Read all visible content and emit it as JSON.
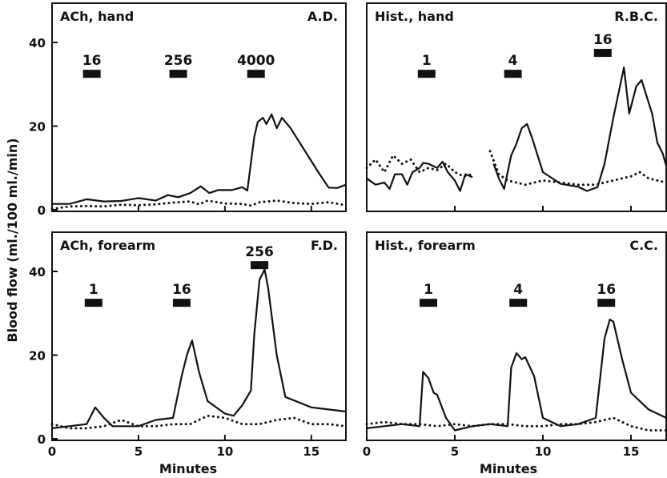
{
  "figure": {
    "ylabel": "Blood flow (ml./100 ml./min)",
    "xlabel": "Minutes"
  },
  "chart_data": [
    {
      "type": "line",
      "title": "ACh, hand",
      "subject": "A.D.",
      "xlim": [
        0,
        17
      ],
      "ylim": [
        0,
        45
      ],
      "yticks": [
        0,
        20,
        40
      ],
      "xticks": [
        0,
        5,
        10,
        15
      ],
      "doses": [
        {
          "label": "16",
          "x": 2.3,
          "y": 32.5
        },
        {
          "label": "256",
          "x": 7.3,
          "y": 32.5
        },
        {
          "label": "4000",
          "x": 11.8,
          "y": 32.5
        }
      ],
      "series": [
        {
          "style": "solid",
          "segments": [
            [
              [
                0,
                1.4
              ],
              [
                1,
                1.4
              ],
              [
                2,
                2.5
              ],
              [
                3,
                2
              ],
              [
                4,
                2.1
              ],
              [
                5,
                2.8
              ],
              [
                6,
                2.2
              ],
              [
                6.7,
                3.5
              ],
              [
                7.3,
                3
              ],
              [
                8,
                4
              ],
              [
                8.6,
                5.6
              ],
              [
                9.1,
                4
              ],
              [
                9.6,
                4.7
              ],
              [
                10.4,
                4.7
              ],
              [
                11,
                5.4
              ],
              [
                11.3,
                4.6
              ],
              [
                11.7,
                17.5
              ],
              [
                11.9,
                21
              ],
              [
                12.2,
                22
              ],
              [
                12.4,
                20.5
              ],
              [
                12.7,
                22.8
              ],
              [
                13,
                19.5
              ],
              [
                13.3,
                22
              ],
              [
                13.8,
                19.5
              ],
              [
                15.4,
                9
              ],
              [
                16,
                5.3
              ],
              [
                16.5,
                5.2
              ],
              [
                17,
                6
              ]
            ]
          ]
        },
        {
          "style": "dotted",
          "segments": [
            [
              [
                0,
                0.2
              ],
              [
                1,
                0.8
              ],
              [
                2,
                0.9
              ],
              [
                3,
                0.8
              ],
              [
                4,
                1.2
              ],
              [
                5,
                1.1
              ],
              [
                6,
                1.3
              ],
              [
                7,
                1.7
              ],
              [
                8,
                2
              ],
              [
                8.5,
                1.3
              ],
              [
                9,
                2.2
              ],
              [
                10,
                1.5
              ],
              [
                11,
                1.4
              ],
              [
                11.5,
                1
              ],
              [
                12,
                1.8
              ],
              [
                13,
                2.2
              ],
              [
                14,
                1.6
              ],
              [
                15,
                1.4
              ],
              [
                16,
                1.8
              ],
              [
                17,
                1.1
              ]
            ]
          ]
        }
      ]
    },
    {
      "type": "line",
      "title": "Hist., hand",
      "subject": "R.B.C.",
      "xlim": [
        0,
        17
      ],
      "ylim": [
        0,
        45
      ],
      "yticks": [],
      "xticks": [
        0,
        5,
        10,
        15
      ],
      "doses": [
        {
          "label": "1",
          "x": 3.4,
          "y": 32.5
        },
        {
          "label": "4",
          "x": 8.3,
          "y": 32.5
        },
        {
          "label": "16",
          "x": 13.4,
          "y": 37.5
        }
      ],
      "series": [
        {
          "style": "solid",
          "segments": [
            [
              [
                0,
                7.5
              ],
              [
                0.5,
                6
              ],
              [
                1,
                6.5
              ],
              [
                1.3,
                5
              ],
              [
                1.6,
                8.5
              ],
              [
                2,
                8.5
              ],
              [
                2.3,
                6
              ],
              [
                2.6,
                9
              ],
              [
                3,
                10
              ],
              [
                3.2,
                11.2
              ],
              [
                3.5,
                11
              ],
              [
                4,
                10
              ],
              [
                4.3,
                11.5
              ],
              [
                4.6,
                9
              ],
              [
                5,
                7
              ],
              [
                5.3,
                4.5
              ],
              [
                5.6,
                8.5
              ],
              [
                6,
                7.8
              ]
            ],
            [
              [
                7.2,
                11
              ],
              [
                7.5,
                7.5
              ],
              [
                7.8,
                5
              ],
              [
                8.2,
                13
              ],
              [
                8.5,
                15.8
              ],
              [
                8.8,
                19.5
              ],
              [
                9.1,
                20.5
              ],
              [
                9.4,
                17
              ],
              [
                10,
                9
              ],
              [
                11,
                6.2
              ],
              [
                12,
                5.5
              ],
              [
                12.5,
                4.5
              ],
              [
                13.1,
                5.4
              ],
              [
                13.5,
                11
              ],
              [
                14,
                22
              ],
              [
                14.3,
                28
              ],
              [
                14.6,
                34
              ],
              [
                14.9,
                23
              ],
              [
                15.3,
                29.5
              ],
              [
                15.6,
                31
              ],
              [
                15.9,
                27
              ],
              [
                16.2,
                23
              ],
              [
                16.5,
                16
              ],
              [
                16.8,
                13.5
              ],
              [
                17,
                10.5
              ]
            ]
          ]
        },
        {
          "style": "dotted",
          "segments": [
            [
              [
                0,
                10
              ],
              [
                0.5,
                12
              ],
              [
                1,
                9
              ],
              [
                1.5,
                13
              ],
              [
                2,
                11
              ],
              [
                2.5,
                12
              ],
              [
                3,
                9
              ],
              [
                3.5,
                10
              ],
              [
                4,
                9.5
              ],
              [
                4.5,
                11
              ],
              [
                5,
                9
              ],
              [
                5.5,
                8
              ],
              [
                6,
                8.5
              ]
            ],
            [
              [
                7,
                14
              ],
              [
                7.5,
                8.5
              ],
              [
                8,
                7
              ],
              [
                9,
                6
              ],
              [
                10,
                7
              ],
              [
                11,
                6.5
              ],
              [
                12,
                6
              ],
              [
                13,
                6
              ],
              [
                14,
                7
              ],
              [
                15,
                8
              ],
              [
                15.5,
                9
              ],
              [
                16,
                7.5
              ],
              [
                16.5,
                7
              ],
              [
                17,
                6.5
              ]
            ]
          ]
        }
      ]
    },
    {
      "type": "line",
      "title": "ACh, forearm",
      "subject": "F.D.",
      "xlim": [
        0,
        17
      ],
      "ylim": [
        0,
        45
      ],
      "yticks": [
        0,
        20,
        40
      ],
      "xticks": [
        0,
        5,
        10,
        15
      ],
      "doses": [
        {
          "label": "1",
          "x": 2.4,
          "y": 32.5
        },
        {
          "label": "16",
          "x": 7.5,
          "y": 32.5
        },
        {
          "label": "256",
          "x": 12,
          "y": 41.5
        }
      ],
      "series": [
        {
          "style": "solid",
          "segments": [
            [
              [
                0,
                2.5
              ],
              [
                1,
                3
              ],
              [
                2,
                3.5
              ],
              [
                2.5,
                7.5
              ],
              [
                3,
                5
              ],
              [
                3.5,
                3
              ],
              [
                4.5,
                3
              ],
              [
                5,
                3
              ],
              [
                6,
                4.5
              ],
              [
                7,
                5
              ],
              [
                7.5,
                15
              ],
              [
                7.8,
                20
              ],
              [
                8.1,
                23.5
              ],
              [
                8.5,
                16
              ],
              [
                9,
                9
              ],
              [
                10,
                6
              ],
              [
                10.5,
                5.5
              ],
              [
                11,
                8
              ],
              [
                11.5,
                11.5
              ],
              [
                11.7,
                25
              ],
              [
                12,
                38
              ],
              [
                12.3,
                40.5
              ],
              [
                12.5,
                36
              ],
              [
                13,
                20
              ],
              [
                13.5,
                10
              ],
              [
                15,
                7.5
              ],
              [
                16,
                7
              ],
              [
                17,
                6.5
              ]
            ]
          ]
        },
        {
          "style": "dotted",
          "segments": [
            [
              [
                0,
                3.5
              ],
              [
                1,
                2.5
              ],
              [
                2,
                2.5
              ],
              [
                3,
                3
              ],
              [
                4,
                4.5
              ],
              [
                5,
                3
              ],
              [
                6,
                3
              ],
              [
                7,
                3.5
              ],
              [
                8,
                3.5
              ],
              [
                9,
                5.5
              ],
              [
                10,
                5
              ],
              [
                11,
                3.5
              ],
              [
                12,
                3.5
              ],
              [
                13,
                4.5
              ],
              [
                14,
                5
              ],
              [
                15,
                3.5
              ],
              [
                16,
                3.5
              ],
              [
                17,
                3
              ]
            ]
          ]
        }
      ]
    },
    {
      "type": "line",
      "title": "Hist., forearm",
      "subject": "C.C.",
      "xlim": [
        0,
        17
      ],
      "ylim": [
        0,
        45
      ],
      "yticks": [],
      "xticks": [
        0,
        5,
        10,
        15
      ],
      "doses": [
        {
          "label": "1",
          "x": 3.5,
          "y": 32.5
        },
        {
          "label": "4",
          "x": 8.6,
          "y": 32.5
        },
        {
          "label": "16",
          "x": 13.6,
          "y": 32.5
        }
      ],
      "series": [
        {
          "style": "solid",
          "segments": [
            [
              [
                0,
                2.5
              ],
              [
                1,
                3
              ],
              [
                2,
                3.5
              ],
              [
                3,
                3
              ],
              [
                3.2,
                16
              ],
              [
                3.5,
                14.5
              ],
              [
                3.8,
                11
              ],
              [
                4,
                10.5
              ],
              [
                4.5,
                5
              ],
              [
                5,
                2
              ],
              [
                6,
                3
              ],
              [
                7,
                3.5
              ],
              [
                8,
                3
              ],
              [
                8.2,
                17
              ],
              [
                8.5,
                20.5
              ],
              [
                8.8,
                19
              ],
              [
                9,
                19.5
              ],
              [
                9.5,
                15
              ],
              [
                10,
                5
              ],
              [
                11,
                3
              ],
              [
                12,
                3.5
              ],
              [
                13,
                5
              ],
              [
                13.5,
                24
              ],
              [
                13.8,
                28.5
              ],
              [
                14,
                28
              ],
              [
                14.5,
                19
              ],
              [
                15,
                11
              ],
              [
                16,
                7
              ],
              [
                17,
                5
              ]
            ]
          ]
        },
        {
          "style": "dotted",
          "segments": [
            [
              [
                0,
                3.5
              ],
              [
                1,
                4
              ],
              [
                2,
                3.5
              ],
              [
                3,
                3.5
              ],
              [
                4,
                3
              ],
              [
                5,
                3.5
              ],
              [
                6,
                3
              ],
              [
                7,
                3.5
              ],
              [
                8,
                3.5
              ],
              [
                9,
                3
              ],
              [
                10,
                3
              ],
              [
                11,
                3.5
              ],
              [
                12,
                3.5
              ],
              [
                13,
                4
              ],
              [
                14,
                5
              ],
              [
                15,
                3
              ],
              [
                16,
                2
              ],
              [
                17,
                2
              ]
            ]
          ]
        }
      ]
    }
  ]
}
